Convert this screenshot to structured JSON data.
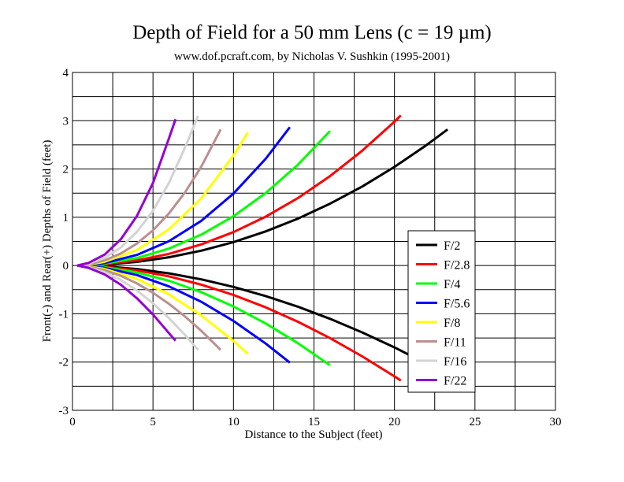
{
  "chart_data": {
    "type": "line",
    "title": "Depth of Field for a 50 mm Lens (c = 19 µm)",
    "subtitle": "www.dof.pcraft.com, by Nicholas V. Sushkin (1995-2001)",
    "xlabel": "Distance to the Subject (feet)",
    "ylabel": "Front(-) and Rear(+) Depths of Field (feet)",
    "xlim": [
      0,
      30
    ],
    "ylim": [
      -3,
      4
    ],
    "xticks": [
      "0",
      "5",
      "10",
      "15",
      "20",
      "25",
      "30"
    ],
    "xtick_values": [
      0,
      5,
      10,
      15,
      20,
      25,
      30
    ],
    "yticks": [
      "-3",
      "-2",
      "-1",
      "0",
      "1",
      "2",
      "3",
      "4"
    ],
    "ytick_values": [
      -3,
      -2,
      -1,
      0,
      1,
      2,
      3,
      4
    ],
    "grid": true,
    "legend_position": "lower-right",
    "series": [
      {
        "name": "F/2",
        "color": "#000000",
        "x": [
          0.3,
          2,
          4,
          6,
          8,
          10,
          12,
          14,
          16,
          18,
          20,
          22,
          23.3
        ],
        "rear": [
          0,
          0.019,
          0.076,
          0.172,
          0.308,
          0.486,
          0.707,
          0.971,
          1.281,
          1.638,
          2.043,
          2.497,
          2.82
        ],
        "front": [
          0,
          -0.018,
          -0.073,
          -0.162,
          -0.286,
          -0.443,
          -0.632,
          -0.853,
          -1.104,
          -1.386,
          -1.696,
          -2.035,
          -2.271
        ]
      },
      {
        "name": "F/2.8",
        "color": "#ff0000",
        "x": [
          0.3,
          2,
          4,
          6,
          8,
          10,
          12,
          14,
          16,
          18,
          20,
          20.4
        ],
        "rear": [
          0,
          0.026,
          0.107,
          0.243,
          0.438,
          0.693,
          1.013,
          1.398,
          1.852,
          2.379,
          2.981,
          3.11
        ],
        "front": [
          0,
          -0.026,
          -0.101,
          -0.225,
          -0.395,
          -0.609,
          -0.866,
          -1.165,
          -1.504,
          -1.882,
          -2.296,
          -2.384
        ]
      },
      {
        "name": "F/4",
        "color": "#00ff00",
        "x": [
          0.3,
          2,
          4,
          6,
          8,
          10,
          12,
          14,
          16
        ],
        "rear": [
          0,
          0.038,
          0.154,
          0.353,
          0.641,
          1.021,
          1.502,
          2.087,
          2.786
        ],
        "front": [
          0,
          -0.036,
          -0.143,
          -0.316,
          -0.552,
          -0.848,
          -1.201,
          -1.608,
          -2.066
        ]
      },
      {
        "name": "F/5.6",
        "color": "#0000ff",
        "x": [
          0.3,
          1,
          2,
          4,
          6,
          8,
          10,
          12,
          13.5
        ],
        "rear": [
          0,
          0.013,
          0.053,
          0.219,
          0.506,
          0.926,
          1.49,
          2.212,
          2.866
        ],
        "front": [
          0,
          -0.013,
          -0.051,
          -0.197,
          -0.433,
          -0.752,
          -1.148,
          -1.616,
          -2.012
        ]
      },
      {
        "name": "F/8",
        "color": "#ffff00",
        "x": [
          0.3,
          1,
          2,
          4,
          6,
          8,
          10,
          10.9
        ],
        "rear": [
          0,
          0.019,
          0.077,
          0.32,
          0.751,
          1.393,
          2.275,
          2.759
        ],
        "front": [
          0,
          -0.018,
          -0.071,
          -0.276,
          -0.6,
          -1.033,
          -1.563,
          -1.832
        ]
      },
      {
        "name": "F/11",
        "color": "#bc8f8f",
        "x": [
          0.3,
          1,
          2,
          3,
          4,
          5,
          6,
          7,
          8,
          9.2
        ],
        "rear": [
          0,
          0.026,
          0.107,
          0.248,
          0.454,
          0.73,
          1.083,
          1.519,
          2.048,
          2.817
        ],
        "front": [
          0,
          -0.025,
          -0.097,
          -0.213,
          -0.37,
          -0.565,
          -0.796,
          -1.059,
          -1.354,
          -1.747
        ]
      },
      {
        "name": "F/16",
        "color": "#d3d3d3",
        "x": [
          0.3,
          1,
          2,
          3,
          4,
          5,
          6,
          7,
          7.8
        ],
        "rear": [
          0,
          0.038,
          0.16,
          0.375,
          0.696,
          1.137,
          1.716,
          2.452,
          3.1
        ],
        "front": [
          0,
          -0.036,
          -0.138,
          -0.3,
          -0.516,
          -0.782,
          -1.092,
          -1.442,
          -1.749
        ]
      },
      {
        "name": "F/22",
        "color": "#9400d3",
        "x": [
          0.3,
          1,
          2,
          3,
          4,
          5,
          6,
          6.4
        ],
        "rear": [
          0,
          0.054,
          0.227,
          0.542,
          1.024,
          1.71,
          2.643,
          3.03
        ],
        "front": [
          0,
          -0.048,
          -0.185,
          -0.398,
          -0.677,
          -1.015,
          -1.405,
          -1.56
        ]
      }
    ]
  }
}
